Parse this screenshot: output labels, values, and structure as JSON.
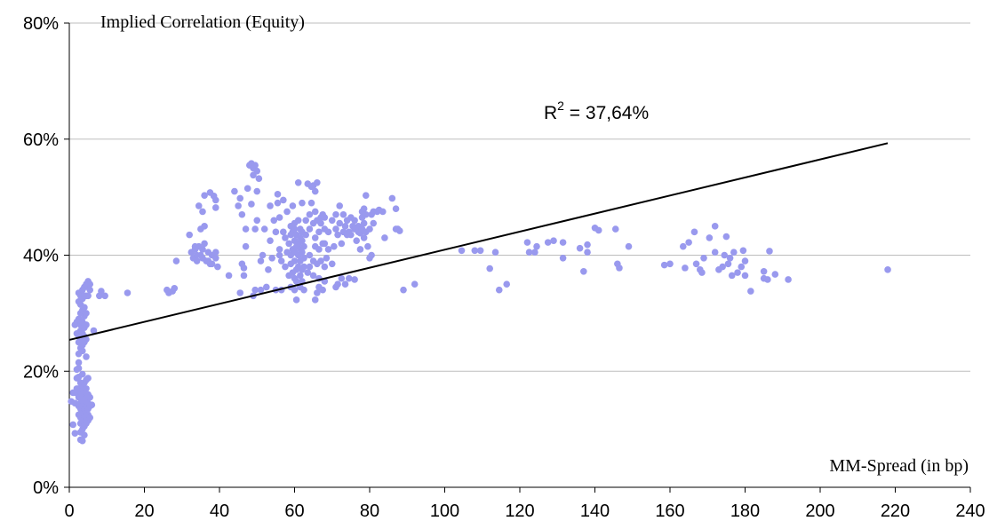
{
  "chart_data": {
    "type": "scatter",
    "ylabel": "Implied Correlation (Equity)",
    "xlabel": "MM-Spread (in bp)",
    "xlim": [
      0,
      240
    ],
    "ylim": [
      0,
      80
    ],
    "x_ticks": [
      "0",
      "20",
      "40",
      "60",
      "80",
      "100",
      "120",
      "140",
      "160",
      "180",
      "200",
      "220",
      "240"
    ],
    "y_ticks": [
      "0%",
      "20%",
      "40%",
      "60%",
      "80%"
    ],
    "y_tick_values": [
      0,
      20,
      40,
      60,
      80
    ],
    "x_tick_values": [
      0,
      20,
      40,
      60,
      80,
      100,
      120,
      140,
      160,
      180,
      200,
      220,
      240
    ],
    "grid": "horizontal",
    "point_color": "#9999ee",
    "trend_color": "#000000",
    "trendline": {
      "x": [
        0,
        218
      ],
      "y": [
        25.4,
        59.3
      ]
    },
    "annotation": {
      "base": "R",
      "superscript": "2",
      "text": " = 37,64%"
    },
    "points": [
      [
        0.5,
        14.8
      ],
      [
        1,
        16.3
      ],
      [
        1,
        10.8
      ],
      [
        1.5,
        9.3
      ],
      [
        1.5,
        28
      ],
      [
        1.5,
        14.5
      ],
      [
        2,
        17
      ],
      [
        2,
        16.2
      ],
      [
        2,
        18.8
      ],
      [
        2,
        20.3
      ],
      [
        2,
        26.5
      ],
      [
        2,
        28.5
      ],
      [
        2.5,
        12.5
      ],
      [
        2.5,
        14
      ],
      [
        2.5,
        15.5
      ],
      [
        2.5,
        17
      ],
      [
        2.5,
        19
      ],
      [
        2.5,
        20.5
      ],
      [
        2.5,
        21.5
      ],
      [
        2.5,
        23
      ],
      [
        2.5,
        25
      ],
      [
        2.5,
        26
      ],
      [
        2.5,
        29
      ],
      [
        2.5,
        32
      ],
      [
        2.5,
        33.5
      ],
      [
        3,
        8.2
      ],
      [
        3,
        9.5
      ],
      [
        3,
        11
      ],
      [
        3,
        12
      ],
      [
        3,
        13.5
      ],
      [
        3,
        14.5
      ],
      [
        3,
        15.5
      ],
      [
        3,
        16.5
      ],
      [
        3,
        18
      ],
      [
        3,
        24
      ],
      [
        3,
        25.5
      ],
      [
        3,
        27
      ],
      [
        3,
        28
      ],
      [
        3,
        30
      ],
      [
        3,
        31.5
      ],
      [
        3,
        33
      ],
      [
        3.5,
        8
      ],
      [
        3.5,
        10
      ],
      [
        3.5,
        11.5
      ],
      [
        3.5,
        13
      ],
      [
        3.5,
        14
      ],
      [
        3.5,
        15
      ],
      [
        3.5,
        16
      ],
      [
        3.5,
        17.5
      ],
      [
        3.5,
        19.5
      ],
      [
        3.5,
        23.5
      ],
      [
        3.5,
        24.5
      ],
      [
        3.5,
        26.5
      ],
      [
        3.5,
        28.5
      ],
      [
        3.5,
        30.5
      ],
      [
        3.5,
        32.5
      ],
      [
        3.5,
        34
      ],
      [
        4,
        9
      ],
      [
        4,
        10.5
      ],
      [
        4,
        12.5
      ],
      [
        4,
        13.5
      ],
      [
        4,
        15
      ],
      [
        4,
        16.5
      ],
      [
        4,
        18
      ],
      [
        4,
        25
      ],
      [
        4,
        26
      ],
      [
        4,
        27.5
      ],
      [
        4,
        29.5
      ],
      [
        4,
        31
      ],
      [
        4,
        33
      ],
      [
        4,
        34.5
      ],
      [
        4.5,
        11
      ],
      [
        4.5,
        12
      ],
      [
        4.5,
        13
      ],
      [
        4.5,
        14
      ],
      [
        4.5,
        15.5
      ],
      [
        4.5,
        17
      ],
      [
        4.5,
        18.5
      ],
      [
        4.5,
        22.5
      ],
      [
        4.5,
        25.5
      ],
      [
        4.5,
        28
      ],
      [
        4.5,
        30
      ],
      [
        4.5,
        33
      ],
      [
        4.5,
        35
      ],
      [
        5,
        11.5
      ],
      [
        5,
        12.5
      ],
      [
        5,
        13.5
      ],
      [
        5,
        14.5
      ],
      [
        5,
        16
      ],
      [
        5,
        18.8
      ],
      [
        5,
        33
      ],
      [
        5,
        34.5
      ],
      [
        5,
        35.5
      ],
      [
        5.5,
        12
      ],
      [
        5.5,
        14
      ],
      [
        5.5,
        15.5
      ],
      [
        5.5,
        34
      ],
      [
        5.5,
        35
      ],
      [
        6,
        14.2
      ],
      [
        6.5,
        27
      ],
      [
        8,
        33
      ],
      [
        8.5,
        33.8
      ],
      [
        9.5,
        33
      ],
      [
        15.5,
        33.5
      ],
      [
        26,
        34
      ],
      [
        26.5,
        33.5
      ],
      [
        27.5,
        33.8
      ],
      [
        28,
        34.3
      ],
      [
        28.5,
        39
      ],
      [
        32,
        43.5
      ],
      [
        32.5,
        40.5
      ],
      [
        33,
        39.5
      ],
      [
        33.5,
        41
      ],
      [
        33.5,
        41.5
      ],
      [
        34,
        40
      ],
      [
        34,
        39
      ],
      [
        34.5,
        41.5
      ],
      [
        34.5,
        48.5
      ],
      [
        35,
        40
      ],
      [
        35,
        44.5
      ],
      [
        35.5,
        41
      ],
      [
        35.5,
        39.5
      ],
      [
        35.5,
        47.5
      ],
      [
        36,
        42
      ],
      [
        36,
        45
      ],
      [
        36,
        50.3
      ],
      [
        36.5,
        39
      ],
      [
        37,
        40.5
      ],
      [
        37,
        39
      ],
      [
        37.5,
        38.5
      ],
      [
        37.5,
        50.8
      ],
      [
        38,
        40
      ],
      [
        38,
        38.5
      ],
      [
        38.5,
        50.2
      ],
      [
        39,
        39.5
      ],
      [
        39,
        48.2
      ],
      [
        39,
        40.5
      ],
      [
        39.5,
        38
      ],
      [
        39,
        49.5
      ],
      [
        42.5,
        36.5
      ],
      [
        44,
        51
      ],
      [
        45,
        48.5
      ],
      [
        45.5,
        49.8
      ],
      [
        45.5,
        33.5
      ],
      [
        46,
        47
      ],
      [
        46,
        38.5
      ],
      [
        46.5,
        37.8
      ],
      [
        46.5,
        36.5
      ],
      [
        47,
        41.5
      ],
      [
        47,
        44.5
      ],
      [
        47.5,
        51.5
      ],
      [
        48,
        55.5
      ],
      [
        48.5,
        55.8
      ],
      [
        48.5,
        48.8
      ],
      [
        49,
        55
      ],
      [
        49,
        53.8
      ],
      [
        49.5,
        55.5
      ],
      [
        49.5,
        44.5
      ],
      [
        49,
        33
      ],
      [
        49.5,
        34
      ],
      [
        50,
        51
      ],
      [
        50,
        46
      ],
      [
        50,
        54.5
      ],
      [
        50.5,
        53.2
      ],
      [
        51,
        39
      ],
      [
        51,
        34
      ],
      [
        51.5,
        40
      ],
      [
        52,
        44.5
      ],
      [
        52.5,
        34.5
      ],
      [
        53,
        37.5
      ],
      [
        53.5,
        42.5
      ],
      [
        53.5,
        48.5
      ],
      [
        54,
        39.5
      ],
      [
        54.5,
        46
      ],
      [
        55,
        34
      ],
      [
        55,
        44
      ],
      [
        55.5,
        49
      ],
      [
        55.5,
        50.5
      ],
      [
        56,
        41
      ],
      [
        56,
        46.5
      ],
      [
        56,
        40
      ],
      [
        56.5,
        39
      ],
      [
        56.5,
        34
      ],
      [
        57,
        44
      ],
      [
        57,
        49.5
      ],
      [
        57.5,
        38
      ],
      [
        57.5,
        43
      ],
      [
        58,
        47.5
      ],
      [
        58,
        40.5
      ],
      [
        58.5,
        36.5
      ],
      [
        58.5,
        42
      ],
      [
        59,
        34.5
      ],
      [
        59,
        38.5
      ],
      [
        59,
        40
      ],
      [
        59,
        43.5
      ],
      [
        59,
        45
      ],
      [
        59.5,
        37
      ],
      [
        59.5,
        41
      ],
      [
        59.5,
        44
      ],
      [
        59.5,
        48.5
      ],
      [
        60,
        34
      ],
      [
        60,
        36
      ],
      [
        60,
        39
      ],
      [
        60,
        40.5
      ],
      [
        60,
        42.5
      ],
      [
        60,
        44.5
      ],
      [
        60,
        45.5
      ],
      [
        60.5,
        32.3
      ],
      [
        60.5,
        35.5
      ],
      [
        60.5,
        37.5
      ],
      [
        60.5,
        41.5
      ],
      [
        60.5,
        43.5
      ],
      [
        61,
        38
      ],
      [
        61,
        40
      ],
      [
        61,
        42
      ],
      [
        61,
        46
      ],
      [
        61,
        52.5
      ],
      [
        61.5,
        34.5
      ],
      [
        61.5,
        36.5
      ],
      [
        61.5,
        39
      ],
      [
        61.5,
        41
      ],
      [
        61.5,
        43
      ],
      [
        61.5,
        44.5
      ],
      [
        62,
        35.5
      ],
      [
        62,
        37.5
      ],
      [
        62,
        40.5
      ],
      [
        62,
        42.5
      ],
      [
        62,
        44
      ],
      [
        62,
        49
      ],
      [
        62.5,
        34
      ],
      [
        62.5,
        38
      ],
      [
        62.5,
        39.5
      ],
      [
        62.5,
        41.5
      ],
      [
        63,
        43.5
      ],
      [
        63,
        46
      ],
      [
        63.5,
        37
      ],
      [
        63.5,
        52.3
      ],
      [
        64,
        38
      ],
      [
        64,
        40
      ],
      [
        64,
        44.5
      ],
      [
        64,
        47
      ],
      [
        64.5,
        49
      ],
      [
        64.5,
        51.8
      ],
      [
        65,
        36.5
      ],
      [
        65,
        39
      ],
      [
        65,
        45.5
      ],
      [
        65,
        52
      ],
      [
        65.5,
        32.3
      ],
      [
        65.5,
        41.5
      ],
      [
        65.5,
        43
      ],
      [
        65.5,
        47.5
      ],
      [
        65.5,
        51
      ],
      [
        66,
        33.5
      ],
      [
        66,
        38.5
      ],
      [
        66,
        46
      ],
      [
        66,
        52.5
      ],
      [
        66.5,
        34.5
      ],
      [
        66.5,
        36
      ],
      [
        66.5,
        41
      ],
      [
        66.5,
        44
      ],
      [
        67,
        39
      ],
      [
        67,
        45.5
      ],
      [
        67,
        46.5
      ],
      [
        67.5,
        34
      ],
      [
        67.5,
        42
      ],
      [
        67.5,
        47
      ],
      [
        68,
        35.5
      ],
      [
        68,
        38
      ],
      [
        68,
        42
      ],
      [
        68,
        44.5
      ],
      [
        68,
        46.5
      ],
      [
        68.5,
        39.5
      ],
      [
        69,
        41
      ],
      [
        69,
        44
      ],
      [
        70,
        38.5
      ],
      [
        70,
        46
      ],
      [
        70.5,
        41.5
      ],
      [
        71,
        34.5
      ],
      [
        71,
        44.5
      ],
      [
        71,
        47
      ],
      [
        71.5,
        35
      ],
      [
        71.5,
        43.5
      ],
      [
        72,
        45.5
      ],
      [
        72,
        48.5
      ],
      [
        72.5,
        36
      ],
      [
        72.5,
        42
      ],
      [
        73,
        44
      ],
      [
        73,
        47
      ],
      [
        73.5,
        35
      ],
      [
        73.5,
        45
      ],
      [
        74,
        43.5
      ],
      [
        74,
        46
      ],
      [
        74.5,
        36
      ],
      [
        74.5,
        44
      ],
      [
        75,
        46.5
      ],
      [
        75,
        43.5
      ],
      [
        75.5,
        45
      ],
      [
        76,
        35.8
      ],
      [
        76,
        44.5
      ],
      [
        76,
        46
      ],
      [
        76.5,
        42.5
      ],
      [
        77,
        45
      ],
      [
        77,
        44
      ],
      [
        77.5,
        43.8
      ],
      [
        77.5,
        41
      ],
      [
        78,
        44.5
      ],
      [
        78,
        47.5
      ],
      [
        78,
        46.5
      ],
      [
        78.5,
        48
      ],
      [
        78.5,
        45.5
      ],
      [
        78.5,
        43
      ],
      [
        79,
        47
      ],
      [
        79,
        50.3
      ],
      [
        79,
        44
      ],
      [
        79.5,
        41.5
      ],
      [
        80,
        44.5
      ],
      [
        80,
        39.5
      ],
      [
        80.5,
        47
      ],
      [
        80.5,
        40
      ],
      [
        81,
        45.5
      ],
      [
        81,
        47.5
      ],
      [
        82,
        47.5
      ],
      [
        82.5,
        47.8
      ],
      [
        83.5,
        47.5
      ],
      [
        84,
        43
      ],
      [
        86,
        49.8
      ],
      [
        87,
        44.5
      ],
      [
        87,
        48
      ],
      [
        87.5,
        44.5
      ],
      [
        88,
        44.2
      ],
      [
        89,
        34
      ],
      [
        92,
        35
      ],
      [
        104.5,
        40.8
      ],
      [
        108,
        40.8
      ],
      [
        109.5,
        40.8
      ],
      [
        112,
        37.7
      ],
      [
        113.5,
        40.5
      ],
      [
        114.5,
        34
      ],
      [
        116.5,
        35
      ],
      [
        122,
        42.2
      ],
      [
        122.5,
        40.5
      ],
      [
        124,
        40.5
      ],
      [
        124.5,
        41.5
      ],
      [
        127.5,
        42.2
      ],
      [
        129,
        42.5
      ],
      [
        131.5,
        42.2
      ],
      [
        131.5,
        39.5
      ],
      [
        136,
        41.2
      ],
      [
        137,
        37.2
      ],
      [
        138,
        41.8
      ],
      [
        138,
        40.5
      ],
      [
        140,
        44.7
      ],
      [
        141,
        44.3
      ],
      [
        145.5,
        44.5
      ],
      [
        146,
        38.5
      ],
      [
        146.5,
        37.8
      ],
      [
        149,
        41.5
      ],
      [
        158.5,
        38.3
      ],
      [
        160,
        38.5
      ],
      [
        163.5,
        41.5
      ],
      [
        164,
        37.8
      ],
      [
        165,
        42.2
      ],
      [
        166.5,
        44
      ],
      [
        167,
        38.5
      ],
      [
        168,
        37.5
      ],
      [
        168.5,
        37
      ],
      [
        169,
        39.5
      ],
      [
        170.5,
        43
      ],
      [
        172,
        40.5
      ],
      [
        172,
        45
      ],
      [
        173,
        37.5
      ],
      [
        174,
        38
      ],
      [
        174.5,
        40
      ],
      [
        175,
        43.2
      ],
      [
        175.5,
        38.5
      ],
      [
        176,
        39.5
      ],
      [
        176.5,
        36.5
      ],
      [
        177,
        40.5
      ],
      [
        178,
        37
      ],
      [
        179,
        38
      ],
      [
        179.5,
        40.8
      ],
      [
        180,
        36.5
      ],
      [
        180,
        39
      ],
      [
        181.5,
        33.8
      ],
      [
        185,
        37.2
      ],
      [
        185,
        36
      ],
      [
        186,
        35.8
      ],
      [
        186.5,
        40.7
      ],
      [
        188,
        36.7
      ],
      [
        191.5,
        35.8
      ],
      [
        218,
        37.5
      ]
    ]
  }
}
